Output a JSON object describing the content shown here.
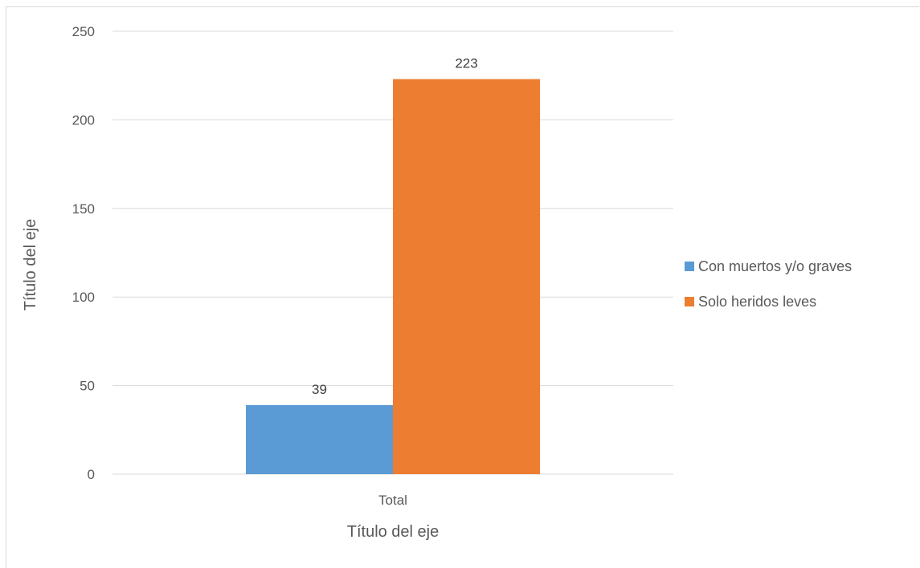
{
  "chart_data": {
    "type": "bar",
    "categories": [
      "Total"
    ],
    "series": [
      {
        "name": "Con muertos y/o graves",
        "values": [
          39
        ],
        "color": "#5b9bd5"
      },
      {
        "name": "Solo heridos leves",
        "values": [
          223
        ],
        "color": "#ed7d31"
      }
    ],
    "xlabel": "Título del eje",
    "ylabel": "Título del eje",
    "ylim": [
      0,
      250
    ],
    "yticks": [
      0,
      50,
      100,
      150,
      200,
      250
    ],
    "grid": true,
    "legend": "right",
    "data_labels": true
  }
}
